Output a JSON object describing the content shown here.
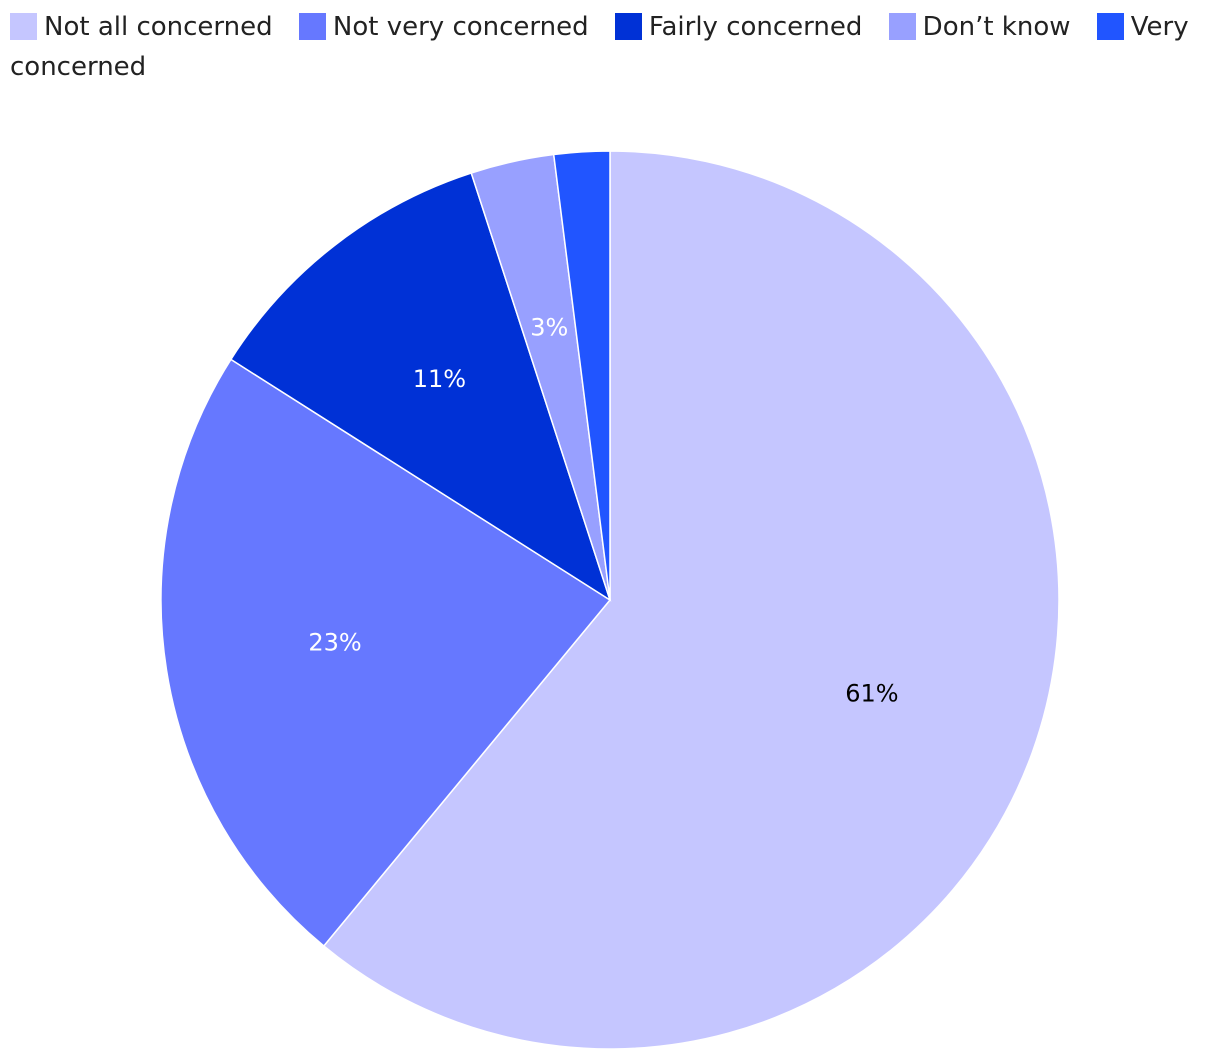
{
  "chart_data": {
    "type": "pie",
    "categories": [
      "Not all concerned",
      "Not very concerned",
      "Fairly concerned",
      "Don’t know",
      "Very concerned"
    ],
    "values": [
      61,
      23,
      11,
      3,
      2
    ],
    "labels": [
      "61%",
      "23%",
      "11%",
      "3%",
      ""
    ],
    "colors": [
      "#c5c6ff",
      "#6678ff",
      "#0031d6",
      "#98a0ff",
      "#2155ff"
    ],
    "label_colors": [
      "#000000",
      "#ffffff",
      "#ffffff",
      "#ffffff",
      "#ffffff"
    ],
    "start": "12 o'clock",
    "direction": "clockwise",
    "legend_position": "top"
  }
}
